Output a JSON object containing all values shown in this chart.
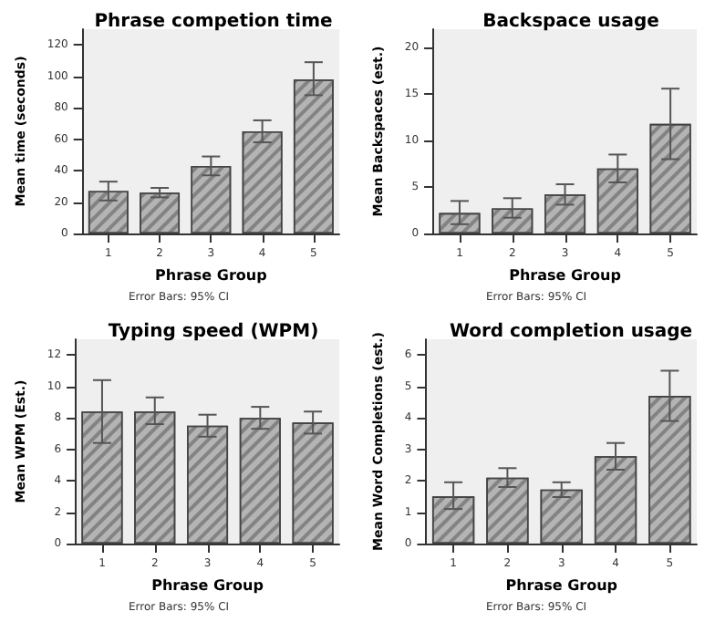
{
  "chart_data": [
    {
      "type": "bar",
      "title": "Phrase competion time",
      "xlabel": "Phrase Group",
      "ylabel": "Mean time (seconds)",
      "annotations": [
        "Error Bars: 95% CI"
      ],
      "categories": [
        "1",
        "2",
        "3",
        "4",
        "5"
      ],
      "values": [
        27,
        26,
        43,
        65,
        98
      ],
      "errors": [
        [
          21,
          33
        ],
        [
          23,
          29
        ],
        [
          37,
          49
        ],
        [
          58,
          72
        ],
        [
          88,
          109
        ]
      ],
      "color": "#b4b4b4",
      "ylim": [
        0,
        130
      ],
      "yticks": [
        0,
        20,
        40,
        60,
        80,
        100,
        120
      ],
      "grid": false
    },
    {
      "type": "bar",
      "title": "Backspace usage",
      "xlabel": "Phrase Group",
      "ylabel": "Mean Backspaces (est.)",
      "annotations": [
        "Error Bars: 95% CI"
      ],
      "categories": [
        "1",
        "2",
        "3",
        "4",
        "5"
      ],
      "values": [
        2.2,
        2.7,
        4.2,
        7.0,
        11.8
      ],
      "errors": [
        [
          1.0,
          3.5
        ],
        [
          1.7,
          3.8
        ],
        [
          3.1,
          5.3
        ],
        [
          5.5,
          8.5
        ],
        [
          8.0,
          15.6
        ]
      ],
      "color": "#b4b4b4",
      "ylim": [
        0,
        22
      ],
      "yticks": [
        0,
        5,
        10,
        15,
        20
      ],
      "grid": false
    },
    {
      "type": "bar",
      "title": "Typing speed (WPM)",
      "xlabel": "Phrase Group",
      "ylabel": "Mean WPM (Est.)",
      "annotations": [
        "Error Bars: 95% CI"
      ],
      "categories": [
        "1",
        "2",
        "3",
        "4",
        "5"
      ],
      "values": [
        8.4,
        8.4,
        7.5,
        8.0,
        7.7
      ],
      "errors": [
        [
          6.4,
          10.4
        ],
        [
          7.6,
          9.3
        ],
        [
          6.8,
          8.2
        ],
        [
          7.3,
          8.7
        ],
        [
          7.0,
          8.4
        ]
      ],
      "color": "#b4b4b4",
      "ylim": [
        0,
        13
      ],
      "yticks": [
        0,
        2,
        4,
        6,
        8,
        10,
        12
      ],
      "grid": false
    },
    {
      "type": "bar",
      "title": "Word completion usage",
      "xlabel": "Phrase Group",
      "ylabel": "Mean Word Completions (est.)",
      "annotations": [
        "Error Bars: 95% CI"
      ],
      "categories": [
        "1",
        "2",
        "3",
        "4",
        "5"
      ],
      "values": [
        1.5,
        2.1,
        1.72,
        2.78,
        4.7
      ],
      "errors": [
        [
          1.1,
          1.95
        ],
        [
          1.8,
          2.4
        ],
        [
          1.48,
          1.95
        ],
        [
          2.35,
          3.2
        ],
        [
          3.9,
          5.5
        ]
      ],
      "color": "#b4b4b4",
      "ylim": [
        0,
        6.5
      ],
      "yticks": [
        0,
        1,
        2,
        3,
        4,
        5,
        6
      ],
      "grid": false
    }
  ]
}
